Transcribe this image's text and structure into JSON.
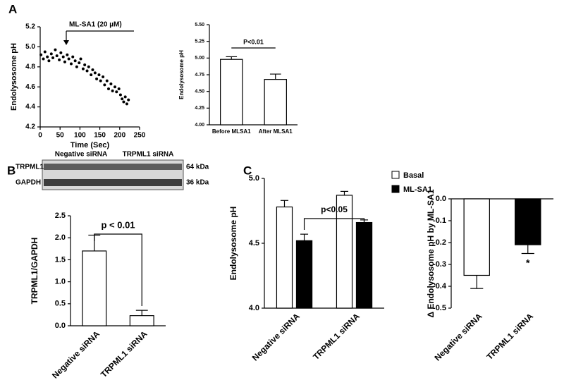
{
  "blot": {
    "lanes": [
      "Negative siRNA",
      "TRPML1 siRNA"
    ],
    "rows": [
      "TRPML1",
      "GAPDH"
    ],
    "sizes": [
      "64 kDa",
      "36 kDa"
    ]
  },
  "chart_data": [
    {
      "type": "scatter",
      "panel": "A",
      "annotation": "ML-SA1 (20 µM)",
      "x_label": "Time (Sec)",
      "y_label": "Endolysosome pH",
      "color": "#000000",
      "x": [
        2,
        8,
        12,
        18,
        22,
        28,
        32,
        38,
        42,
        48,
        52,
        58,
        62,
        68,
        72,
        78,
        82,
        88,
        92,
        98,
        102,
        108,
        112,
        118,
        122,
        128,
        132,
        138,
        142,
        148,
        152,
        158,
        162,
        168,
        172,
        178,
        182,
        188,
        192,
        198,
        202,
        206,
        210,
        214,
        218,
        222
      ],
      "values": [
        4.92,
        4.88,
        4.95,
        4.9,
        4.86,
        4.93,
        4.89,
        4.97,
        4.91,
        4.87,
        4.94,
        4.9,
        4.85,
        4.92,
        4.88,
        4.83,
        4.9,
        4.86,
        4.8,
        4.84,
        4.88,
        4.78,
        4.82,
        4.76,
        4.8,
        4.72,
        4.77,
        4.74,
        4.68,
        4.72,
        4.66,
        4.7,
        4.62,
        4.66,
        4.58,
        4.63,
        4.56,
        4.6,
        4.55,
        4.58,
        4.52,
        4.48,
        4.45,
        4.5,
        4.43,
        4.47
      ],
      "xlim": [
        0,
        250
      ],
      "xticks": [
        0,
        50,
        100,
        150,
        200,
        250
      ],
      "ylim": [
        4.2,
        5.2
      ],
      "yticks": [
        4.2,
        4.4,
        4.6,
        4.8,
        {
          "value": 5,
          "label": "5.0"
        },
        5.2
      ]
    },
    {
      "type": "bar",
      "annotation": "P<0.01",
      "y_label": "Endolysosome pH",
      "categories": [
        "Before MLSA1",
        "After MLSA1"
      ],
      "values": [
        4.98,
        4.68
      ],
      "errors": [
        0.04,
        0.08
      ],
      "colors": [
        "#ffffff",
        "#ffffff"
      ],
      "ylim": [
        4,
        5.5
      ],
      "yticks": [
        {
          "value": 4,
          "label": "4.00"
        },
        {
          "value": 4.25,
          "label": "4.25"
        },
        {
          "value": 4.5,
          "label": "4.50"
        },
        {
          "value": 4.75,
          "label": "4.75"
        },
        {
          "value": 5,
          "label": "5.00"
        },
        {
          "value": 5.25,
          "label": "5.25"
        },
        {
          "value": 5.5,
          "label": "5.50"
        }
      ]
    },
    {
      "type": "bar",
      "panel": "B",
      "annotation": "p < 0.01",
      "y_label": "TRPML1/GAPDH",
      "categories": [
        "Negative siRNA",
        "TRPML1 siRNA"
      ],
      "values": [
        1.7,
        0.23
      ],
      "errors": [
        0.36,
        0.12
      ],
      "colors": [
        "#ffffff",
        "#ffffff"
      ],
      "ylim": [
        0,
        2.5
      ],
      "yticks": [
        {
          "value": 0,
          "label": "0.0"
        },
        0.5,
        {
          "value": 1,
          "label": "1.0"
        },
        1.5,
        {
          "value": 2,
          "label": "2.0"
        },
        2.5
      ]
    },
    {
      "type": "bar",
      "panel": "C",
      "annotation": "p<0.05",
      "y_label": "Endolysosome pH",
      "categories": [
        "Negative siRNA",
        "TRPML1 siRNA"
      ],
      "series": [
        {
          "name": "Basal",
          "color": "#ffffff",
          "values": [
            4.78,
            4.87
          ],
          "errors": [
            0.05,
            0.03
          ]
        },
        {
          "name": "ML-SA1",
          "color": "#000000",
          "values": [
            4.52,
            4.66
          ],
          "errors": [
            0.05,
            0.02
          ]
        }
      ],
      "ylim": [
        4,
        5
      ],
      "yticks": [
        {
          "value": 4,
          "label": "4.0"
        },
        4.5,
        {
          "value": 5,
          "label": "5.0"
        }
      ]
    },
    {
      "type": "bar",
      "annotation": "*",
      "y_label": "Δ Endolysosome pH by ML-SA1",
      "categories": [
        "Negative siRNA",
        "TRPML1 siRNA"
      ],
      "values": [
        -0.35,
        -0.21
      ],
      "errors": [
        0.06,
        0.04
      ],
      "colors": [
        "#ffffff",
        "#000000"
      ],
      "ylim": [
        -0.5,
        0
      ],
      "yticks": [
        {
          "value": 0,
          "label": "0.0"
        },
        -0.1,
        -0.2,
        -0.3,
        -0.4,
        -0.5
      ]
    }
  ]
}
